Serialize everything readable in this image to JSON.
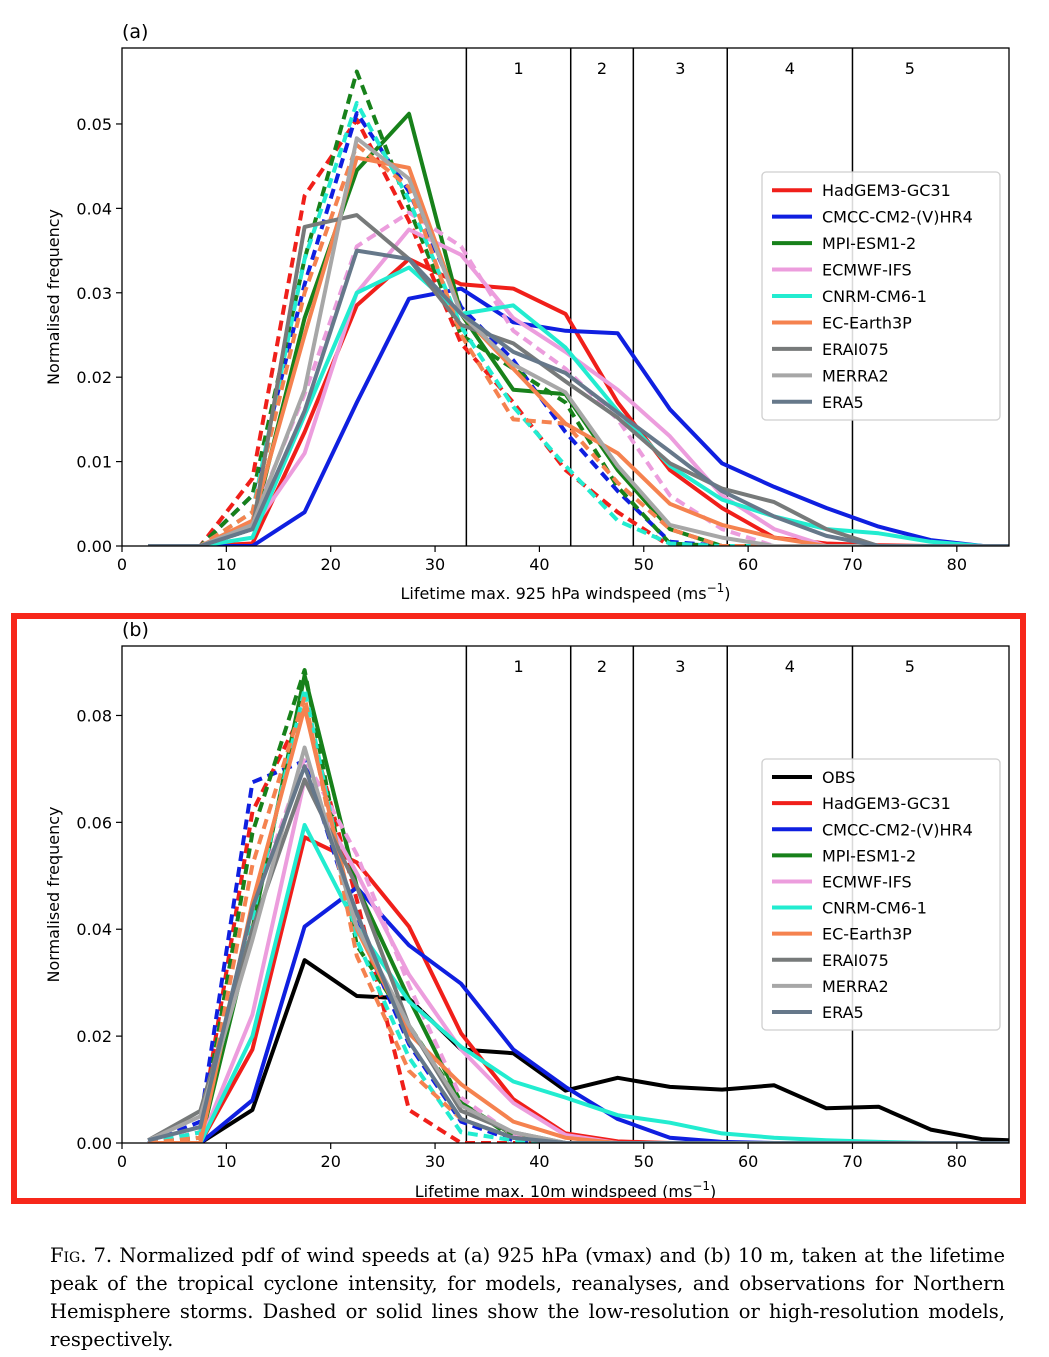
{
  "caption": {
    "label": "Fig. 7.",
    "text": "Normalized pdf of wind speeds at (a) 925 hPa (vmax) and (b) 10 m, taken at the lifetime peak of the tropical cyclone intensity, for models, reanalyses, and observations for Northern Hemisphere storms. Dashed or solid lines show the low-resolution or high-resolution models, respectively."
  },
  "colors": {
    "OBS": "#000000",
    "HadGEM3-GC31": "#f01f1a",
    "CMCC-CM2-(V)HR4": "#0f1fe0",
    "MPI-ESM1-2": "#17811a",
    "ECMWF-IFS": "#ec9ddd",
    "CNRM-CM6-1": "#22ecd0",
    "EC-Earth3P": "#f5824f",
    "ERAI075": "#777a7a",
    "MERRA2": "#a7a7a7",
    "ERA5": "#66788a",
    "highlight_box": "#f7271a"
  },
  "chart_data": [
    {
      "panel": "(a)",
      "type": "line",
      "xlabel": "Lifetime max. 925 hPa windspeed (ms",
      "xlabel_sup": "−1",
      "xlabel_end": ")",
      "ylabel": "Normalised frequency",
      "xlim": [
        0,
        85
      ],
      "ylim": [
        0,
        0.059
      ],
      "xticks": [
        0,
        10,
        20,
        30,
        40,
        50,
        60,
        70,
        80
      ],
      "yticks": [
        0.0,
        0.01,
        0.02,
        0.03,
        0.04,
        0.05
      ],
      "ytick_labels": [
        "0.00",
        "0.01",
        "0.02",
        "0.03",
        "0.04",
        "0.05"
      ],
      "category_lines": [
        33,
        43,
        49,
        58,
        70
      ],
      "category_labels": [
        {
          "label": "1",
          "x": 38
        },
        {
          "label": "2",
          "x": 46
        },
        {
          "label": "3",
          "x": 53.5
        },
        {
          "label": "4",
          "x": 64
        },
        {
          "label": "5",
          "x": 75.5
        }
      ],
      "legend_position": "center-right",
      "legend": [
        "HadGEM3-GC31",
        "CMCC-CM2-(V)HR4",
        "MPI-ESM1-2",
        "ECMWF-IFS",
        "CNRM-CM6-1",
        "EC-Earth3P",
        "ERAI075",
        "MERRA2",
        "ERA5"
      ],
      "x": [
        2.5,
        7.5,
        12.5,
        17.5,
        22.5,
        27.5,
        32.5,
        37.5,
        42.5,
        47.5,
        52.5,
        57.5,
        62.5,
        67.5,
        72.5,
        77.5,
        82.5,
        85
      ],
      "series": [
        {
          "name": "HadGEM3-GC31",
          "style": "solid",
          "values": [
            0,
            0,
            0.0003,
            0.0135,
            0.0285,
            0.034,
            0.031,
            0.0305,
            0.0275,
            0.017,
            0.009,
            0.0045,
            0.001,
            0.0003,
            0.0001,
            0,
            0,
            0
          ]
        },
        {
          "name": "HadGEM3-GC31",
          "style": "dashed",
          "values": [
            0,
            0,
            0.008,
            0.0415,
            0.0505,
            0.0385,
            0.024,
            0.017,
            0.009,
            0.004,
            0,
            0,
            0,
            0,
            0,
            0,
            0,
            0
          ]
        },
        {
          "name": "CMCC-CM2-(V)HR4",
          "style": "solid",
          "values": [
            0,
            0,
            0,
            0.004,
            0.017,
            0.0293,
            0.0305,
            0.0265,
            0.0255,
            0.0252,
            0.0162,
            0.0098,
            0.007,
            0.0045,
            0.0023,
            0.0007,
            0,
            0
          ]
        },
        {
          "name": "CMCC-CM2-(V)HR4",
          "style": "dashed",
          "values": [
            0,
            0,
            0.006,
            0.031,
            0.0513,
            0.042,
            0.0283,
            0.022,
            0.0135,
            0.0065,
            0.0005,
            0,
            0,
            0,
            0,
            0,
            0,
            0
          ]
        },
        {
          "name": "MPI-ESM1-2",
          "style": "solid",
          "values": [
            0,
            0,
            0.002,
            0.027,
            0.0445,
            0.0512,
            0.0275,
            0.0185,
            0.018,
            0.009,
            0.002,
            0,
            0,
            0,
            0,
            0,
            0,
            0
          ]
        },
        {
          "name": "MPI-ESM1-2",
          "style": "dashed",
          "values": [
            0,
            0,
            0.006,
            0.034,
            0.0562,
            0.04,
            0.025,
            0.021,
            0.017,
            0.007,
            0.0003,
            0,
            0,
            0,
            0,
            0,
            0,
            0
          ]
        },
        {
          "name": "ECMWF-IFS",
          "style": "solid",
          "values": [
            0,
            0,
            0.002,
            0.011,
            0.03,
            0.0375,
            0.0345,
            0.027,
            0.023,
            0.0185,
            0.013,
            0.006,
            0.002,
            0,
            0,
            0,
            0,
            0
          ]
        },
        {
          "name": "ECMWF-IFS",
          "style": "dashed",
          "values": [
            0,
            0,
            0.003,
            0.018,
            0.0355,
            0.0395,
            0.0355,
            0.0255,
            0.021,
            0.015,
            0.006,
            0.002,
            0,
            0,
            0,
            0,
            0,
            0
          ]
        },
        {
          "name": "CNRM-CM6-1",
          "style": "solid",
          "values": [
            0,
            0,
            0.001,
            0.0155,
            0.03,
            0.033,
            0.0275,
            0.0285,
            0.0235,
            0.016,
            0.0095,
            0.0055,
            0.0035,
            0.002,
            0.0015,
            0.0005,
            0,
            0
          ]
        },
        {
          "name": "CNRM-CM6-1",
          "style": "dashed",
          "values": [
            0,
            0,
            0.004,
            0.034,
            0.0525,
            0.041,
            0.026,
            0.0165,
            0.0095,
            0.003,
            0.0003,
            0,
            0,
            0,
            0,
            0,
            0,
            0
          ]
        },
        {
          "name": "EC-Earth3P",
          "style": "solid",
          "values": [
            0,
            0,
            0.003,
            0.025,
            0.046,
            0.0448,
            0.0275,
            0.021,
            0.0145,
            0.011,
            0.005,
            0.0025,
            0.001,
            0,
            0,
            0,
            0,
            0
          ]
        },
        {
          "name": "EC-Earth3P",
          "style": "dashed",
          "values": [
            0,
            0,
            0.004,
            0.03,
            0.0475,
            0.0425,
            0.025,
            0.015,
            0.0145,
            0.0075,
            0.002,
            0,
            0,
            0,
            0,
            0,
            0,
            0
          ]
        },
        {
          "name": "ERAI075",
          "style": "solid",
          "values": [
            0,
            0,
            0.002,
            0.0378,
            0.0392,
            0.034,
            0.0262,
            0.024,
            0.0195,
            0.0152,
            0.0098,
            0.0068,
            0.0052,
            0.002,
            0,
            0,
            0,
            0
          ]
        },
        {
          "name": "MERRA2",
          "style": "solid",
          "values": [
            0,
            0,
            0.0025,
            0.0185,
            0.0483,
            0.0435,
            0.0275,
            0.0215,
            0.0182,
            0.0095,
            0.0025,
            0.001,
            0,
            0,
            0,
            0,
            0,
            0
          ]
        },
        {
          "name": "ERA5",
          "style": "solid",
          "values": [
            0,
            0,
            0.002,
            0.016,
            0.035,
            0.034,
            0.0275,
            0.023,
            0.0205,
            0.0158,
            0.0112,
            0.0065,
            0.0035,
            0.0012,
            0,
            0,
            0,
            0
          ]
        }
      ]
    },
    {
      "panel": "(b)",
      "type": "line",
      "xlabel": "Lifetime max. 10m windspeed (ms",
      "xlabel_sup": "−1",
      "xlabel_end": ")",
      "ylabel": "Normalised frequency",
      "xlim": [
        0,
        85
      ],
      "ylim": [
        0,
        0.093
      ],
      "xticks": [
        0,
        10,
        20,
        30,
        40,
        50,
        60,
        70,
        80
      ],
      "yticks": [
        0.0,
        0.02,
        0.04,
        0.06,
        0.08
      ],
      "ytick_labels": [
        "0.00",
        "0.02",
        "0.04",
        "0.06",
        "0.08"
      ],
      "category_lines": [
        33,
        43,
        49,
        58,
        70
      ],
      "category_labels": [
        {
          "label": "1",
          "x": 38
        },
        {
          "label": "2",
          "x": 46
        },
        {
          "label": "3",
          "x": 53.5
        },
        {
          "label": "4",
          "x": 64
        },
        {
          "label": "5",
          "x": 75.5
        }
      ],
      "legend_position": "center-right",
      "legend": [
        "OBS",
        "HadGEM3-GC31",
        "CMCC-CM2-(V)HR4",
        "MPI-ESM1-2",
        "ECMWF-IFS",
        "CNRM-CM6-1",
        "EC-Earth3P",
        "ERAI075",
        "MERRA2",
        "ERA5"
      ],
      "x": [
        2.5,
        7.5,
        12.5,
        17.5,
        22.5,
        27.5,
        32.5,
        37.5,
        42.5,
        47.5,
        52.5,
        57.5,
        62.5,
        67.5,
        72.5,
        77.5,
        82.5,
        85
      ],
      "series": [
        {
          "name": "OBS",
          "style": "solid",
          "values": [
            0,
            0,
            0.0062,
            0.0342,
            0.0275,
            0.027,
            0.0175,
            0.0168,
            0.0098,
            0.0122,
            0.0105,
            0.01,
            0.0108,
            0.0065,
            0.0068,
            0.0025,
            0.0007,
            0.0005
          ]
        },
        {
          "name": "HadGEM3-GC31",
          "style": "solid",
          "values": [
            0,
            0,
            0.0175,
            0.0572,
            0.0525,
            0.0405,
            0.0205,
            0.0082,
            0.0018,
            0.0003,
            0,
            0,
            0,
            0,
            0,
            0,
            0,
            0
          ]
        },
        {
          "name": "HadGEM3-GC31",
          "style": "dashed",
          "values": [
            0,
            0.002,
            0.062,
            0.0815,
            0.0455,
            0.0062,
            0,
            0,
            0,
            0,
            0,
            0,
            0,
            0,
            0,
            0,
            0,
            0
          ]
        },
        {
          "name": "CMCC-CM2-(V)HR4",
          "style": "solid",
          "values": [
            0,
            0,
            0.008,
            0.0405,
            0.0478,
            0.037,
            0.0298,
            0.0175,
            0.0105,
            0.0045,
            0.001,
            0.0002,
            0,
            0,
            0,
            0,
            0,
            0
          ]
        },
        {
          "name": "CMCC-CM2-(V)HR4",
          "style": "dashed",
          "values": [
            0,
            0.004,
            0.0675,
            0.0715,
            0.041,
            0.0185,
            0.004,
            0.0005,
            0,
            0,
            0,
            0,
            0,
            0,
            0,
            0,
            0,
            0
          ]
        },
        {
          "name": "MPI-ESM1-2",
          "style": "solid",
          "values": [
            0,
            0,
            0.04,
            0.0875,
            0.048,
            0.027,
            0.0075,
            0.0015,
            0,
            0,
            0,
            0,
            0,
            0,
            0,
            0,
            0,
            0
          ]
        },
        {
          "name": "MPI-ESM1-2",
          "style": "dashed",
          "values": [
            0,
            0.001,
            0.058,
            0.0885,
            0.037,
            0.022,
            0.0075,
            0.001,
            0,
            0,
            0,
            0,
            0,
            0,
            0,
            0,
            0,
            0
          ]
        },
        {
          "name": "ECMWF-IFS",
          "style": "solid",
          "values": [
            0,
            0,
            0.024,
            0.068,
            0.0505,
            0.0315,
            0.0175,
            0.0075,
            0.0015,
            0,
            0,
            0,
            0,
            0,
            0,
            0,
            0,
            0
          ]
        },
        {
          "name": "ECMWF-IFS",
          "style": "dashed",
          "values": [
            0,
            0.002,
            0.044,
            0.072,
            0.054,
            0.0295,
            0.0085,
            0.0015,
            0,
            0,
            0,
            0,
            0,
            0,
            0,
            0,
            0,
            0
          ]
        },
        {
          "name": "CNRM-CM6-1",
          "style": "solid",
          "values": [
            0,
            0,
            0.02,
            0.0595,
            0.0405,
            0.0265,
            0.018,
            0.0115,
            0.0085,
            0.0052,
            0.0038,
            0.0018,
            0.001,
            0.0005,
            0.0002,
            0,
            0,
            0
          ]
        },
        {
          "name": "CNRM-CM6-1",
          "style": "dashed",
          "values": [
            0,
            0.002,
            0.042,
            0.085,
            0.038,
            0.016,
            0.002,
            0.0005,
            0,
            0,
            0,
            0,
            0,
            0,
            0,
            0,
            0,
            0
          ]
        },
        {
          "name": "EC-Earth3P",
          "style": "solid",
          "values": [
            0,
            0,
            0.045,
            0.0815,
            0.04,
            0.0205,
            0.011,
            0.004,
            0.001,
            0,
            0,
            0,
            0,
            0,
            0,
            0,
            0,
            0
          ]
        },
        {
          "name": "EC-Earth3P",
          "style": "dashed",
          "values": [
            0,
            0.001,
            0.052,
            0.0835,
            0.035,
            0.0135,
            0.0045,
            0.001,
            0,
            0,
            0,
            0,
            0,
            0,
            0,
            0,
            0,
            0
          ]
        },
        {
          "name": "ERAI075",
          "style": "solid",
          "values": [
            0.0005,
            0.006,
            0.04,
            0.068,
            0.048,
            0.022,
            0.006,
            0.002,
            0,
            0,
            0,
            0,
            0,
            0,
            0,
            0,
            0,
            0
          ]
        },
        {
          "name": "MERRA2",
          "style": "solid",
          "values": [
            0.0005,
            0.005,
            0.038,
            0.074,
            0.0405,
            0.022,
            0.007,
            0.002,
            0,
            0,
            0,
            0,
            0,
            0,
            0,
            0,
            0,
            0
          ]
        },
        {
          "name": "ERA5",
          "style": "solid",
          "values": [
            0.0005,
            0.003,
            0.044,
            0.0705,
            0.043,
            0.019,
            0.0045,
            0.001,
            0,
            0,
            0,
            0,
            0,
            0,
            0,
            0,
            0,
            0
          ]
        }
      ]
    }
  ]
}
